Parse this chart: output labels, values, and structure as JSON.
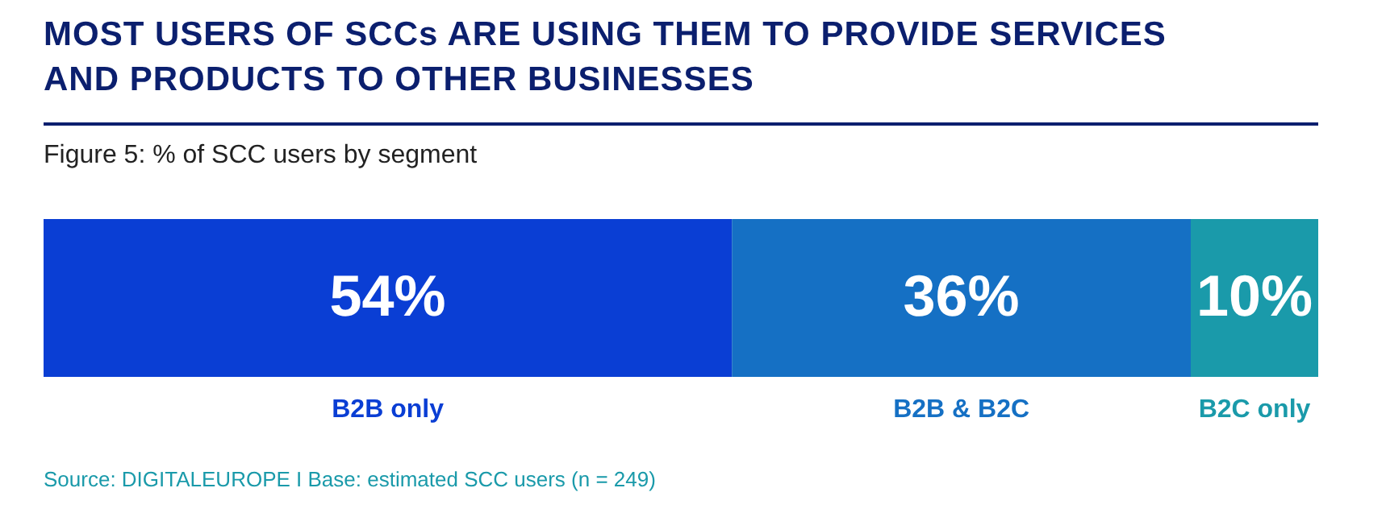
{
  "chart_data": {
    "type": "bar",
    "orientation": "horizontal",
    "stacked": true,
    "title": "MOST USERS OF SCCs ARE USING THEM TO PROVIDE SERVICES AND PRODUCTS TO OTHER BUSINESSES",
    "subtitle": "Figure 5: % of SCC users by segment",
    "categories": [
      null
    ],
    "series": [
      {
        "name": "B2B only",
        "color": "#0a3ed4",
        "values": [
          54
        ],
        "value_labels": [
          "54%"
        ]
      },
      {
        "name": "B2B & B2C",
        "color": "#1570c4",
        "values": [
          36
        ],
        "value_labels": [
          "36%"
        ]
      },
      {
        "name": "B2C only",
        "color": "#1a9aaa",
        "values": [
          10
        ],
        "value_labels": [
          "10%"
        ]
      }
    ],
    "legend": "bottom",
    "annotations": [
      "Source: DIGITALEUROPE I Base: estimated SCC users (n = 249)"
    ]
  }
}
